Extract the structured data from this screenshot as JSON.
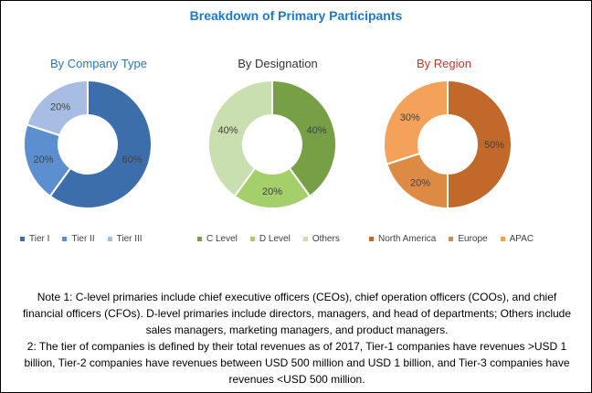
{
  "title": "Breakdown of Primary Participants",
  "colors": {
    "title": "#1f78c8",
    "company_heading": "#2e75b6",
    "designation_heading": "#333333",
    "region_heading": "#c0392b"
  },
  "chart_data": [
    {
      "type": "pie",
      "title": "By Company Type",
      "categories": [
        "Tier I",
        "Tier II",
        "Tier III"
      ],
      "values": [
        60,
        20,
        20
      ],
      "labels": [
        "60%",
        "20%",
        "20%"
      ],
      "colors": [
        "#3d6eac",
        "#5b8fd0",
        "#a8bde3"
      ],
      "legend": "bottom"
    },
    {
      "type": "pie",
      "title": "By Designation",
      "categories": [
        "C Level",
        "D Level",
        "Others"
      ],
      "values": [
        40,
        20,
        40
      ],
      "labels": [
        "40%",
        "20%",
        "40%"
      ],
      "colors": [
        "#77a046",
        "#a4cf6a",
        "#c9dfaf"
      ],
      "legend": "bottom"
    },
    {
      "type": "pie",
      "title": "By Region",
      "categories": [
        "North America",
        "Europe",
        "APAC"
      ],
      "values": [
        50,
        20,
        30
      ],
      "labels": [
        "50%",
        "20%",
        "30%"
      ],
      "colors": [
        "#c0692a",
        "#dd8a44",
        "#f4a259"
      ],
      "legend": "bottom"
    }
  ],
  "notes": {
    "note1": "Note 1: C-level primaries include chief executive officers (CEOs), chief operation officers (COOs), and chief financial officers (CFOs). D-level primaries include directors, managers, and head of departments; Others include sales managers, marketing managers, and product managers.",
    "note2": "2: The tier of companies is defined by their total revenues as of 2017, Tier-1 companies have revenues >USD 1 billion, Tier-2 companies have revenues between USD 500 million and USD 1 billion, and Tier-3 companies have revenues <USD 500 million."
  }
}
